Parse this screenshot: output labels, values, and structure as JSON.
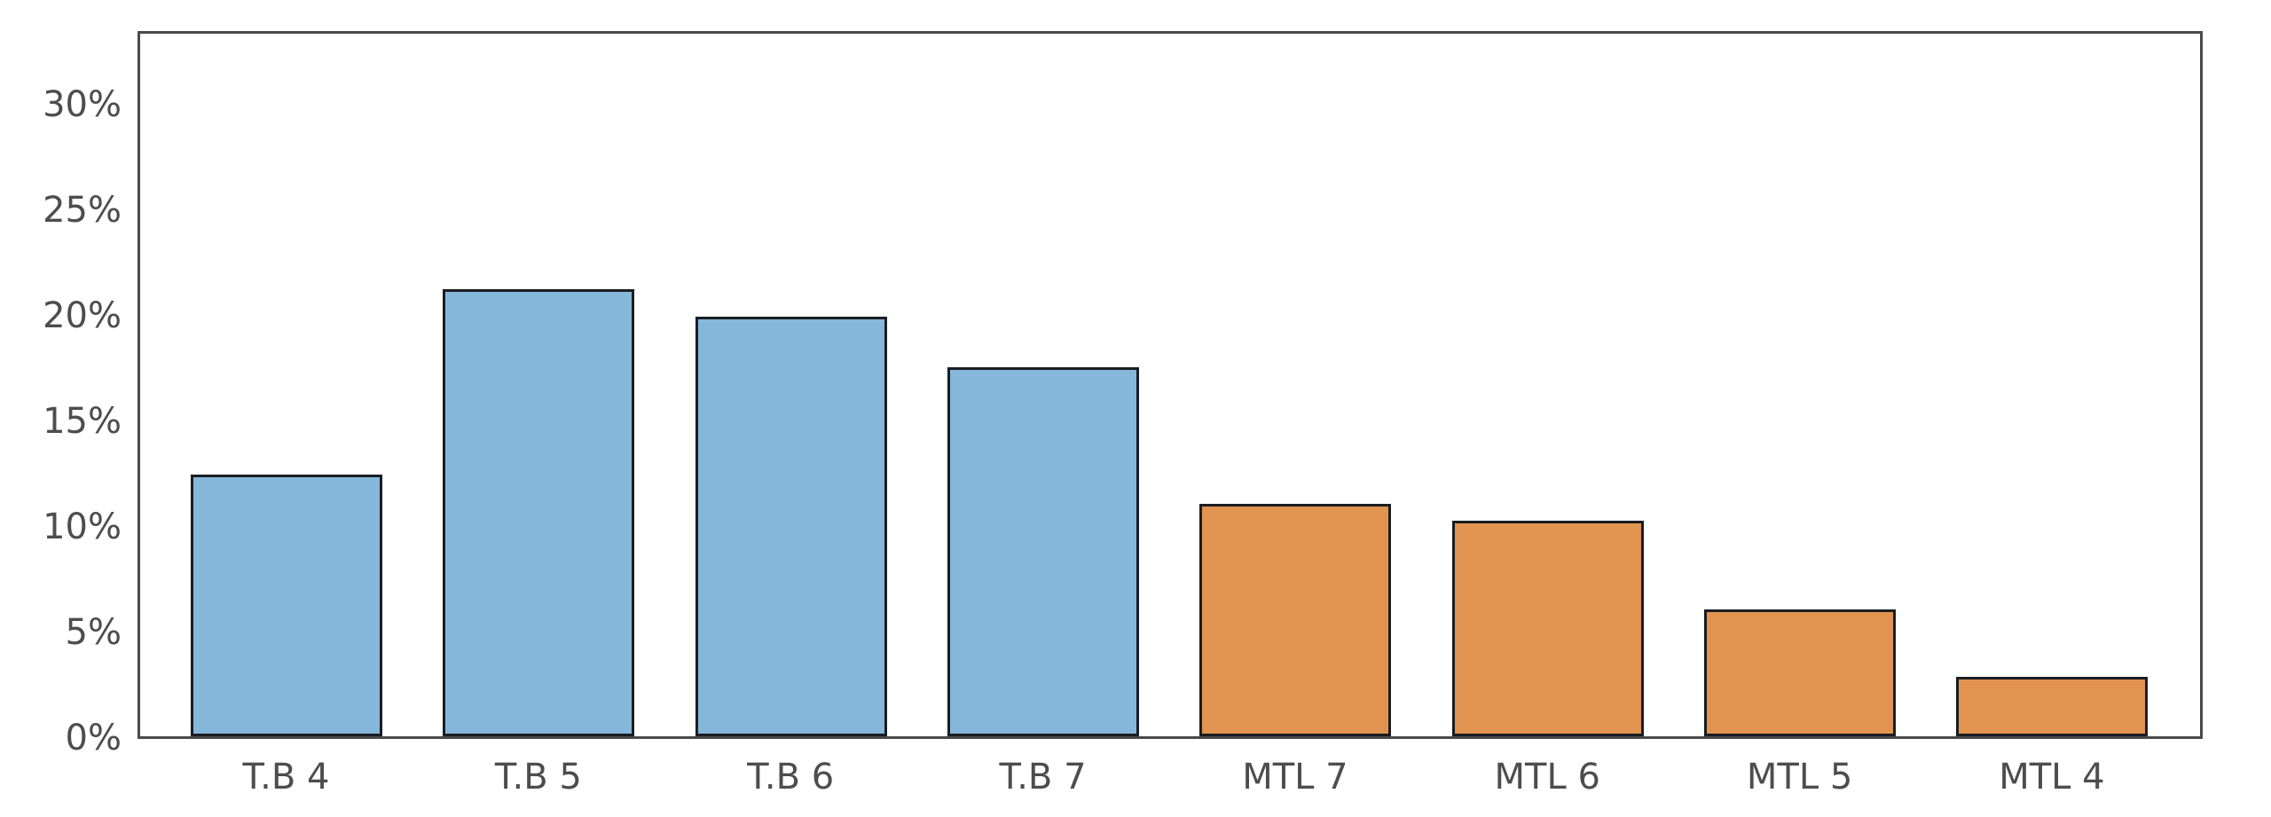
{
  "figure": {
    "background": "#ffffff",
    "frame_color": "#4a4a4a",
    "text_color": "#4d4d4d"
  },
  "chart_data": {
    "type": "bar",
    "title": "",
    "xlabel": "",
    "ylabel": "",
    "unit": "%",
    "categories": [
      "T.B 4",
      "T.B 5",
      "T.B 6",
      "T.B 7",
      "MTL 7",
      "MTL 6",
      "MTL 5",
      "MTL 4"
    ],
    "values": [
      12.4,
      21.2,
      19.9,
      17.5,
      11.0,
      10.2,
      6.0,
      2.8
    ],
    "series": [
      {
        "name": "T.B",
        "color": "#85B7DA",
        "categories": [
          "T.B 4",
          "T.B 5",
          "T.B 6",
          "T.B 7"
        ],
        "values": [
          12.4,
          21.2,
          19.9,
          17.5
        ]
      },
      {
        "name": "MTL",
        "color": "#E0944F",
        "categories": [
          "MTL 7",
          "MTL 6",
          "MTL 5",
          "MTL 4"
        ],
        "values": [
          11.0,
          10.2,
          6.0,
          2.8
        ]
      }
    ],
    "bar_colors": [
      "#85B7DA",
      "#85B7DA",
      "#85B7DA",
      "#85B7DA",
      "#E0944F",
      "#E0944F",
      "#E0944F",
      "#E0944F"
    ],
    "bar_edge_color": "#1a1d21",
    "ytick_labels": [
      "0%",
      "5%",
      "10%",
      "15%",
      "20%",
      "25%",
      "30%"
    ],
    "ytick_values": [
      0,
      5,
      10,
      15,
      20,
      25,
      30
    ],
    "ylim": [
      0,
      33.3
    ],
    "grid": false,
    "legend": "none"
  }
}
